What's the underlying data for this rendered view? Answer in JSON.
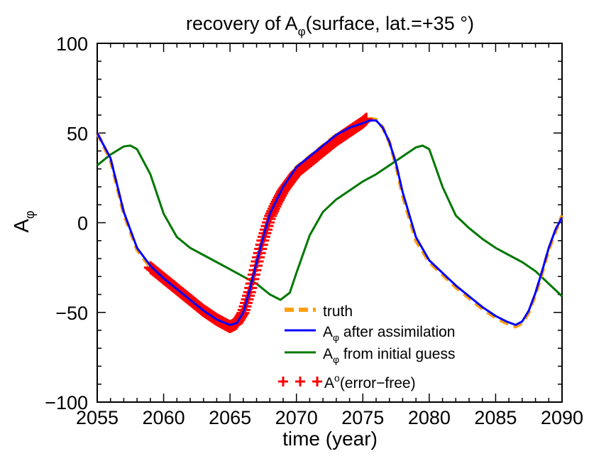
{
  "chart_data": {
    "type": "line",
    "title": {
      "prefix": "recovery of A",
      "sub": "φ",
      "suffix": "(surface, lat.=+35  °)"
    },
    "xlabel": "time (year)",
    "ylabel": {
      "main": "A",
      "sub": "φ"
    },
    "xlim": [
      2055,
      2090
    ],
    "ylim": [
      -100,
      100
    ],
    "x_ticks": [
      2055,
      2060,
      2065,
      2070,
      2075,
      2080,
      2085,
      2090
    ],
    "x_tick_labels": [
      "2055",
      "2060",
      "2065",
      "2070",
      "2075",
      "2080",
      "2085",
      "2090"
    ],
    "y_ticks": [
      -100,
      -50,
      0,
      50,
      100
    ],
    "y_tick_labels": [
      "−100",
      "−50",
      "0",
      "50",
      "100"
    ],
    "series": [
      {
        "name": "truth",
        "style": "dashed",
        "color": "#ffa010",
        "x": [
          2055,
          2056,
          2057,
          2058,
          2059,
          2060,
          2061,
          2062,
          2063,
          2064,
          2065,
          2065.5,
          2066,
          2066.5,
          2067,
          2067.5,
          2068,
          2069,
          2070,
          2071,
          2072,
          2073,
          2074,
          2075,
          2075.5,
          2076,
          2076.5,
          2077,
          2077.5,
          2078,
          2079,
          2080,
          2081,
          2082,
          2083,
          2084,
          2085,
          2085.8,
          2086.5,
          2087,
          2087.5,
          2088,
          2088.5,
          2089,
          2089.5,
          2090
        ],
        "y": [
          50,
          35,
          5,
          -15,
          -25,
          -31,
          -37,
          -43,
          -49,
          -54,
          -57,
          -56,
          -50,
          -37,
          -22,
          -8,
          5,
          20,
          31,
          37,
          43,
          49,
          53,
          56,
          58,
          57.5,
          53,
          45,
          32,
          15,
          -10,
          -22,
          -29,
          -36,
          -42,
          -48,
          -53,
          -56,
          -58,
          -56,
          -50,
          -40,
          -28,
          -15,
          -5,
          4
        ]
      },
      {
        "name": "A after assimilation",
        "label_main": "A",
        "label_sub": "φ",
        "label_rest": " after assimilation",
        "style": "solid",
        "color": "#0000ff",
        "x": [
          2055,
          2056,
          2057,
          2058,
          2059,
          2060,
          2061,
          2062,
          2063,
          2064,
          2065,
          2065.5,
          2066,
          2066.5,
          2067,
          2067.5,
          2068,
          2069,
          2070,
          2071,
          2072,
          2073,
          2074,
          2075,
          2075.5,
          2076,
          2076.5,
          2077,
          2077.5,
          2078,
          2079,
          2080,
          2081,
          2082,
          2083,
          2084,
          2085,
          2085.8,
          2086.5,
          2087,
          2087.5,
          2088,
          2088.5,
          2089,
          2089.5,
          2090
        ],
        "y": [
          50,
          36,
          6,
          -14,
          -24,
          -31,
          -37,
          -43,
          -49,
          -54,
          -57,
          -56,
          -50,
          -37,
          -22,
          -8,
          5,
          20,
          31,
          37,
          43,
          49,
          53,
          55.5,
          57,
          57,
          53,
          45,
          33,
          17,
          -8,
          -21,
          -28,
          -35,
          -41,
          -47,
          -52,
          -55,
          -57,
          -55,
          -49,
          -39,
          -27,
          -14,
          -4,
          3
        ]
      },
      {
        "name": "A from initial guess",
        "label_main": "A",
        "label_sub": "φ",
        "label_rest": " from initial guess",
        "style": "solid",
        "color": "#007800",
        "x": [
          2055,
          2056,
          2057,
          2057.5,
          2058,
          2059,
          2060,
          2061,
          2062,
          2063,
          2064,
          2065,
          2066,
          2067,
          2068,
          2068.8,
          2069.5,
          2070,
          2071,
          2072,
          2073,
          2074,
          2075,
          2076,
          2077,
          2078,
          2079,
          2079.5,
          2080,
          2081,
          2082,
          2083,
          2084,
          2085,
          2086,
          2087,
          2088,
          2089,
          2090
        ],
        "y": [
          32,
          38,
          42.5,
          43,
          41,
          27,
          5,
          -8,
          -14,
          -18,
          -22,
          -26,
          -30,
          -34,
          -40,
          -43,
          -39,
          -28,
          -7,
          6,
          13,
          18,
          23,
          27,
          32,
          37,
          42,
          43,
          41,
          20,
          4,
          -3,
          -9,
          -14,
          -18,
          -22,
          -27,
          -34,
          -41
        ]
      },
      {
        "name": "A°(error-free)",
        "label_main": "A",
        "label_sup": "o",
        "label_rest": "(error−free)",
        "style": "markers",
        "marker": "+",
        "color": "#ff0000",
        "x": [
          2059,
          2060,
          2061,
          2062,
          2063,
          2064,
          2064.5,
          2065,
          2065.5,
          2066,
          2066.5,
          2067,
          2067.5,
          2068,
          2068.5,
          2069,
          2069.5,
          2070,
          2071,
          2072,
          2073,
          2074,
          2075,
          2075.3
        ],
        "y": [
          -25,
          -31,
          -37,
          -43,
          -49,
          -54,
          -56,
          -58,
          -56,
          -50,
          -38,
          -23,
          -9,
          3,
          11,
          18,
          23,
          28,
          34,
          40,
          46,
          51,
          56,
          58
        ]
      }
    ]
  }
}
